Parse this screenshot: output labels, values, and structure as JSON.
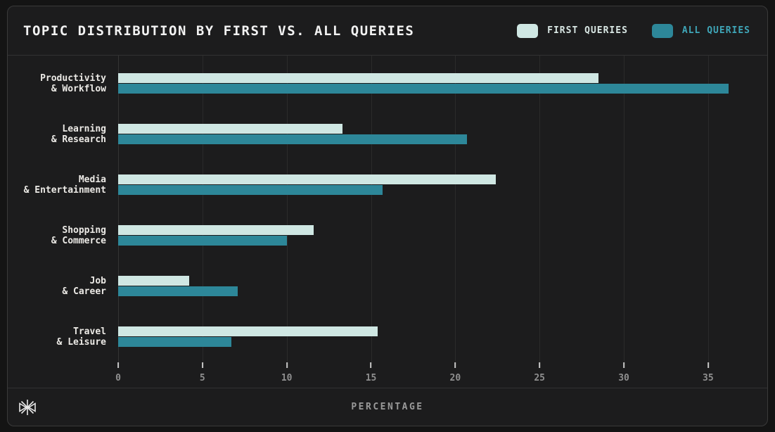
{
  "header": {
    "title": "TOPIC DISTRIBUTION BY FIRST VS. ALL QUERIES"
  },
  "legend": {
    "items": [
      {
        "label": "FIRST QUERIES",
        "swatch_color": "#cfe7e3",
        "label_color": "#d9e7e4"
      },
      {
        "label": "ALL QUERIES",
        "swatch_color": "#2d8799",
        "label_color": "#3fa6b8"
      }
    ]
  },
  "footer": {
    "xlabel": "PERCENTAGE",
    "logo_icon": "starburst-icon"
  },
  "colors": {
    "background": "#141414",
    "card_background": "#1c1c1d",
    "card_border": "#3a3a3a",
    "gridline": "#2b2b2b",
    "first_queries": "#cfe7e3",
    "all_queries": "#2d8799",
    "title_text": "#f2f2f2",
    "tick_text": "#8f8f8f"
  },
  "chart_data": {
    "type": "bar",
    "orientation": "horizontal",
    "title": "TOPIC DISTRIBUTION BY FIRST VS. ALL QUERIES",
    "categories": [
      [
        "Productivity",
        "& Workflow"
      ],
      [
        "Learning",
        "& Research"
      ],
      [
        "Media",
        "& Entertainment"
      ],
      [
        "Shopping",
        "& Commerce"
      ],
      [
        "Job",
        "& Career"
      ],
      [
        "Travel",
        "& Leisure"
      ]
    ],
    "series": [
      {
        "name": "FIRST QUERIES",
        "color": "#cfe7e3",
        "values": [
          28.5,
          13.3,
          22.4,
          11.6,
          4.2,
          15.4
        ]
      },
      {
        "name": "ALL QUERIES",
        "color": "#2d8799",
        "values": [
          36.2,
          20.7,
          15.7,
          10.0,
          7.1,
          6.7
        ]
      }
    ],
    "xlabel": "PERCENTAGE",
    "ylabel": "",
    "xticks": [
      0,
      5,
      10,
      15,
      20,
      25,
      30,
      35
    ],
    "xlim": [
      0,
      37.3
    ],
    "grid": true,
    "legend_position": "top-right"
  }
}
